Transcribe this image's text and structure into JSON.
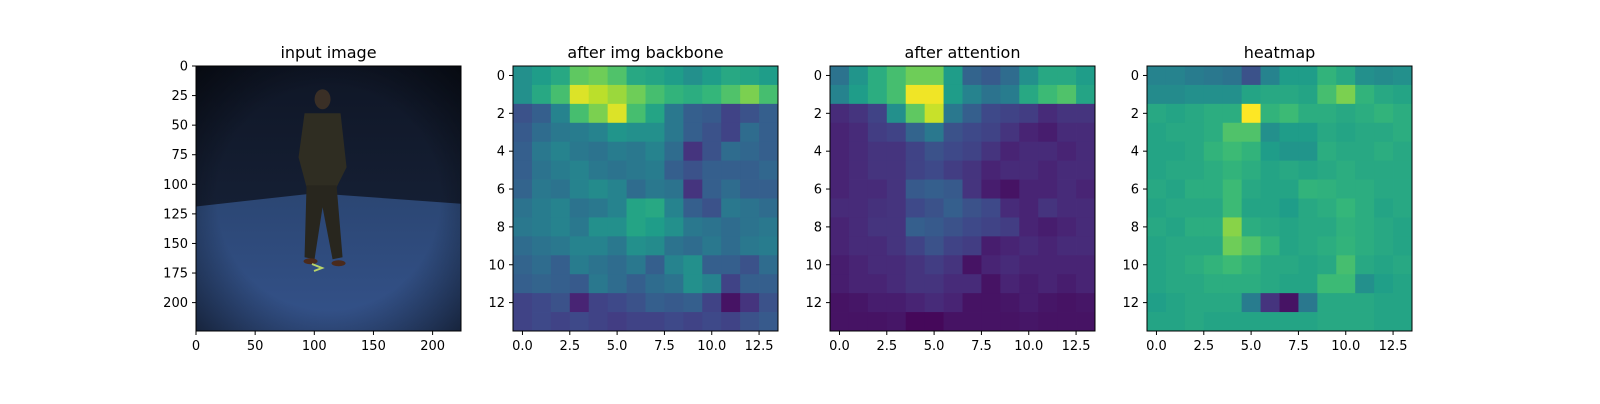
{
  "chart_data": [
    {
      "type": "image",
      "title": "input image",
      "xlim": [
        0,
        224
      ],
      "ylim": [
        224,
        0
      ],
      "xticks": [
        0,
        50,
        100,
        150,
        200
      ],
      "yticks": [
        0,
        25,
        50,
        75,
        100,
        125,
        150,
        175,
        200
      ],
      "xtick_labels": [
        "0",
        "50",
        "100",
        "150",
        "200"
      ],
      "ytick_labels": [
        "0",
        "25",
        "50",
        "75",
        "100",
        "125",
        "150",
        "175",
        "200"
      ]
    },
    {
      "type": "heatmap",
      "title": "after img backbone",
      "colormap": "viridis",
      "xlim": [
        -0.5,
        13.5
      ],
      "ylim": [
        13.5,
        -0.5
      ],
      "xticks": [
        0,
        2.5,
        5,
        7.5,
        10,
        12.5
      ],
      "yticks": [
        0,
        2,
        4,
        6,
        8,
        10,
        12
      ],
      "xtick_labels": [
        "0.0",
        "2.5",
        "5.0",
        "7.5",
        "10.0",
        "12.5"
      ],
      "ytick_labels": [
        "0",
        "2",
        "4",
        "6",
        "8",
        "10",
        "12"
      ],
      "values": [
        [
          0.5,
          0.55,
          0.6,
          0.75,
          0.78,
          0.72,
          0.6,
          0.58,
          0.55,
          0.5,
          0.55,
          0.6,
          0.58,
          0.55
        ],
        [
          0.5,
          0.6,
          0.7,
          0.95,
          0.9,
          0.85,
          0.78,
          0.7,
          0.65,
          0.62,
          0.66,
          0.72,
          0.8,
          0.7
        ],
        [
          0.25,
          0.3,
          0.45,
          0.7,
          0.8,
          0.95,
          0.7,
          0.58,
          0.4,
          0.3,
          0.28,
          0.2,
          0.25,
          0.3
        ],
        [
          0.28,
          0.35,
          0.4,
          0.42,
          0.45,
          0.52,
          0.5,
          0.5,
          0.4,
          0.3,
          0.25,
          0.2,
          0.35,
          0.3
        ],
        [
          0.3,
          0.4,
          0.45,
          0.4,
          0.38,
          0.42,
          0.4,
          0.45,
          0.35,
          0.15,
          0.25,
          0.35,
          0.33,
          0.3
        ],
        [
          0.3,
          0.38,
          0.42,
          0.45,
          0.4,
          0.38,
          0.4,
          0.42,
          0.3,
          0.25,
          0.3,
          0.3,
          0.3,
          0.33
        ],
        [
          0.32,
          0.4,
          0.38,
          0.45,
          0.48,
          0.45,
          0.35,
          0.4,
          0.38,
          0.15,
          0.3,
          0.35,
          0.3,
          0.3
        ],
        [
          0.38,
          0.42,
          0.45,
          0.38,
          0.4,
          0.45,
          0.58,
          0.6,
          0.45,
          0.3,
          0.25,
          0.4,
          0.38,
          0.35
        ],
        [
          0.4,
          0.42,
          0.45,
          0.4,
          0.5,
          0.5,
          0.58,
          0.55,
          0.5,
          0.4,
          0.38,
          0.35,
          0.38,
          0.4
        ],
        [
          0.35,
          0.38,
          0.4,
          0.45,
          0.45,
          0.4,
          0.5,
          0.48,
          0.38,
          0.35,
          0.4,
          0.35,
          0.4,
          0.42
        ],
        [
          0.32,
          0.35,
          0.3,
          0.42,
          0.38,
          0.35,
          0.4,
          0.3,
          0.45,
          0.5,
          0.3,
          0.3,
          0.25,
          0.35
        ],
        [
          0.3,
          0.32,
          0.3,
          0.28,
          0.4,
          0.35,
          0.3,
          0.35,
          0.38,
          0.5,
          0.45,
          0.2,
          0.3,
          0.3
        ],
        [
          0.2,
          0.22,
          0.25,
          0.1,
          0.2,
          0.22,
          0.25,
          0.3,
          0.28,
          0.3,
          0.2,
          0.05,
          0.15,
          0.25
        ],
        [
          0.2,
          0.22,
          0.2,
          0.22,
          0.2,
          0.18,
          0.2,
          0.2,
          0.22,
          0.2,
          0.22,
          0.2,
          0.25,
          0.28
        ]
      ]
    },
    {
      "type": "heatmap",
      "title": "after attention",
      "colormap": "viridis",
      "xlim": [
        -0.5,
        13.5
      ],
      "ylim": [
        13.5,
        -0.5
      ],
      "xticks": [
        0,
        2.5,
        5,
        7.5,
        10,
        12.5
      ],
      "yticks": [
        0,
        2,
        4,
        6,
        8,
        10,
        12
      ],
      "xtick_labels": [
        "0.0",
        "2.5",
        "5.0",
        "7.5",
        "10.0",
        "12.5"
      ],
      "ytick_labels": [
        "0",
        "2",
        "4",
        "6",
        "8",
        "10",
        "12"
      ],
      "values": [
        [
          0.38,
          0.52,
          0.62,
          0.7,
          0.78,
          0.78,
          0.55,
          0.32,
          0.28,
          0.35,
          0.5,
          0.6,
          0.6,
          0.55
        ],
        [
          0.45,
          0.55,
          0.62,
          0.7,
          0.98,
          0.98,
          0.55,
          0.45,
          0.38,
          0.42,
          0.6,
          0.68,
          0.72,
          0.58
        ],
        [
          0.12,
          0.15,
          0.2,
          0.5,
          0.75,
          0.92,
          0.4,
          0.3,
          0.22,
          0.2,
          0.18,
          0.12,
          0.15,
          0.15
        ],
        [
          0.1,
          0.12,
          0.18,
          0.2,
          0.32,
          0.4,
          0.25,
          0.22,
          0.2,
          0.15,
          0.1,
          0.08,
          0.12,
          0.12
        ],
        [
          0.1,
          0.12,
          0.15,
          0.15,
          0.2,
          0.25,
          0.22,
          0.2,
          0.15,
          0.1,
          0.12,
          0.12,
          0.1,
          0.12
        ],
        [
          0.1,
          0.12,
          0.15,
          0.15,
          0.2,
          0.22,
          0.18,
          0.15,
          0.1,
          0.12,
          0.12,
          0.1,
          0.12,
          0.12
        ],
        [
          0.1,
          0.12,
          0.12,
          0.15,
          0.28,
          0.3,
          0.28,
          0.15,
          0.08,
          0.05,
          0.1,
          0.1,
          0.12,
          0.1
        ],
        [
          0.12,
          0.12,
          0.14,
          0.15,
          0.22,
          0.25,
          0.3,
          0.25,
          0.22,
          0.12,
          0.1,
          0.15,
          0.12,
          0.12
        ],
        [
          0.1,
          0.12,
          0.15,
          0.15,
          0.3,
          0.28,
          0.25,
          0.22,
          0.2,
          0.18,
          0.1,
          0.08,
          0.1,
          0.12
        ],
        [
          0.1,
          0.12,
          0.12,
          0.15,
          0.2,
          0.25,
          0.2,
          0.18,
          0.08,
          0.1,
          0.12,
          0.1,
          0.12,
          0.12
        ],
        [
          0.08,
          0.1,
          0.12,
          0.12,
          0.15,
          0.18,
          0.15,
          0.05,
          0.1,
          0.12,
          0.1,
          0.1,
          0.1,
          0.1
        ],
        [
          0.08,
          0.1,
          0.1,
          0.12,
          0.15,
          0.15,
          0.12,
          0.12,
          0.05,
          0.1,
          0.08,
          0.1,
          0.08,
          0.1
        ],
        [
          0.05,
          0.06,
          0.08,
          0.08,
          0.1,
          0.12,
          0.1,
          0.05,
          0.05,
          0.06,
          0.08,
          0.06,
          0.05,
          0.06
        ],
        [
          0.05,
          0.05,
          0.05,
          0.06,
          0.02,
          0.02,
          0.05,
          0.05,
          0.05,
          0.05,
          0.06,
          0.05,
          0.05,
          0.05
        ]
      ]
    },
    {
      "type": "heatmap",
      "title": "heatmap",
      "colormap": "viridis",
      "xlim": [
        -0.5,
        13.5
      ],
      "ylim": [
        13.5,
        -0.5
      ],
      "xticks": [
        0,
        2.5,
        5,
        7.5,
        10,
        12.5
      ],
      "yticks": [
        0,
        2,
        4,
        6,
        8,
        10,
        12
      ],
      "xtick_labels": [
        "0.0",
        "2.5",
        "5.0",
        "7.5",
        "10.0",
        "12.5"
      ],
      "ytick_labels": [
        "0",
        "2",
        "4",
        "6",
        "8",
        "10",
        "12"
      ],
      "values": [
        [
          0.45,
          0.45,
          0.42,
          0.4,
          0.38,
          0.25,
          0.45,
          0.55,
          0.55,
          0.65,
          0.6,
          0.5,
          0.48,
          0.5
        ],
        [
          0.48,
          0.48,
          0.5,
          0.5,
          0.5,
          0.58,
          0.6,
          0.6,
          0.58,
          0.7,
          0.8,
          0.65,
          0.6,
          0.58
        ],
        [
          0.6,
          0.58,
          0.6,
          0.62,
          0.62,
          1.0,
          0.65,
          0.68,
          0.62,
          0.62,
          0.6,
          0.62,
          0.65,
          0.62
        ],
        [
          0.58,
          0.6,
          0.6,
          0.62,
          0.72,
          0.72,
          0.5,
          0.55,
          0.55,
          0.6,
          0.58,
          0.6,
          0.6,
          0.62
        ],
        [
          0.58,
          0.58,
          0.6,
          0.65,
          0.68,
          0.65,
          0.55,
          0.52,
          0.52,
          0.62,
          0.6,
          0.6,
          0.62,
          0.6
        ],
        [
          0.58,
          0.6,
          0.6,
          0.62,
          0.65,
          0.62,
          0.58,
          0.6,
          0.58,
          0.6,
          0.62,
          0.6,
          0.6,
          0.6
        ],
        [
          0.6,
          0.58,
          0.62,
          0.62,
          0.68,
          0.6,
          0.58,
          0.58,
          0.65,
          0.64,
          0.62,
          0.62,
          0.6,
          0.6
        ],
        [
          0.58,
          0.6,
          0.6,
          0.6,
          0.68,
          0.58,
          0.58,
          0.55,
          0.6,
          0.62,
          0.66,
          0.62,
          0.58,
          0.6
        ],
        [
          0.6,
          0.58,
          0.62,
          0.62,
          0.82,
          0.62,
          0.6,
          0.58,
          0.6,
          0.6,
          0.64,
          0.62,
          0.6,
          0.58
        ],
        [
          0.58,
          0.6,
          0.6,
          0.6,
          0.78,
          0.72,
          0.65,
          0.58,
          0.6,
          0.62,
          0.65,
          0.62,
          0.6,
          0.58
        ],
        [
          0.58,
          0.6,
          0.62,
          0.65,
          0.68,
          0.64,
          0.6,
          0.6,
          0.58,
          0.6,
          0.7,
          0.6,
          0.58,
          0.6
        ],
        [
          0.58,
          0.6,
          0.6,
          0.62,
          0.62,
          0.62,
          0.6,
          0.58,
          0.58,
          0.68,
          0.68,
          0.5,
          0.56,
          0.58
        ],
        [
          0.56,
          0.58,
          0.6,
          0.6,
          0.6,
          0.42,
          0.15,
          0.05,
          0.4,
          0.6,
          0.6,
          0.6,
          0.58,
          0.58
        ],
        [
          0.58,
          0.58,
          0.6,
          0.58,
          0.58,
          0.58,
          0.58,
          0.58,
          0.58,
          0.6,
          0.6,
          0.6,
          0.58,
          0.58
        ]
      ]
    }
  ]
}
